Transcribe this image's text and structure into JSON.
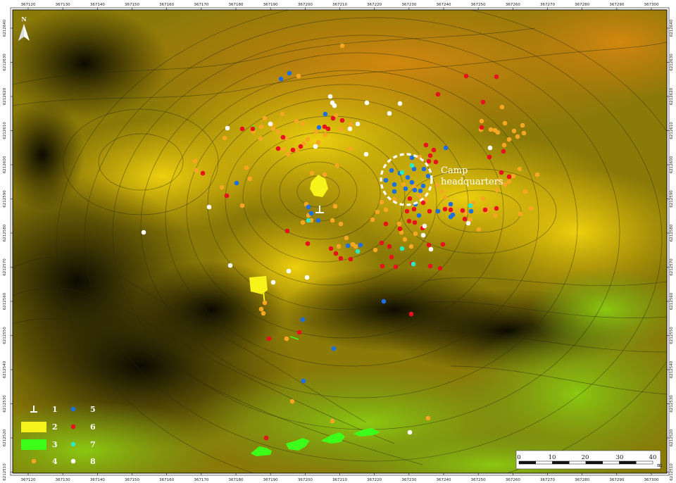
{
  "north_label": "N",
  "camp_label": {
    "line1": "Camp",
    "line2": "headquarters"
  },
  "x_ticks": [
    "367120",
    "367130",
    "367140",
    "367150",
    "367160",
    "367170",
    "367180",
    "367190",
    "367200",
    "367210",
    "367220",
    "367230",
    "367240",
    "367250",
    "367260",
    "367270",
    "367280",
    "367290",
    "367300"
  ],
  "y_ticks": [
    "6212640",
    "6212630",
    "6212620",
    "6212610",
    "6212600",
    "6212590",
    "6212580",
    "6212570",
    "6212560",
    "6212550",
    "6212540",
    "6212530",
    "6212520",
    "6212510"
  ],
  "legend": [
    {
      "num": "1",
      "symbol": "post"
    },
    {
      "num": "2",
      "symbol": "yellow-area"
    },
    {
      "num": "3",
      "symbol": "green-area"
    },
    {
      "num": "4",
      "symbol": "dot",
      "color": "#f5a623"
    },
    {
      "num": "5",
      "symbol": "dot",
      "color": "#1e6fe0"
    },
    {
      "num": "6",
      "symbol": "dot",
      "color": "#e8121e"
    },
    {
      "num": "7",
      "symbol": "dot",
      "color": "#2ee8c0"
    },
    {
      "num": "8",
      "symbol": "dot",
      "color": "#ffffff"
    }
  ],
  "scale_bar": {
    "labels": [
      "0",
      "10",
      "20",
      "30",
      "40"
    ],
    "unit": "m"
  },
  "colors": {
    "orange": "#f5a623",
    "blue": "#1e6fe0",
    "red": "#e8121e",
    "cyan": "#2ee8c0",
    "white": "#ffffff",
    "yellow": "#f7f21a",
    "green": "#3dff1a"
  },
  "points": {
    "orange": [
      [
        486,
        65
      ],
      [
        424,
        108
      ],
      [
        401,
        162
      ],
      [
        376,
        168
      ],
      [
        371,
        180
      ],
      [
        387,
        177
      ],
      [
        395,
        187
      ],
      [
        407,
        196
      ],
      [
        421,
        172
      ],
      [
        430,
        176
      ],
      [
        437,
        198
      ],
      [
        431,
        204
      ],
      [
        422,
        213
      ],
      [
        402,
        212
      ],
      [
        409,
        219
      ],
      [
        388,
        183
      ],
      [
        360,
        187
      ],
      [
        370,
        197
      ],
      [
        319,
        196
      ],
      [
        277,
        229
      ],
      [
        279,
        242
      ],
      [
        315,
        266
      ],
      [
        350,
        238
      ],
      [
        355,
        254
      ],
      [
        449,
        187
      ],
      [
        462,
        191
      ],
      [
        452,
        202
      ],
      [
        443,
        246
      ],
      [
        461,
        248
      ],
      [
        479,
        235
      ],
      [
        497,
        211
      ],
      [
        484,
        183
      ],
      [
        477,
        164
      ],
      [
        498,
        177
      ],
      [
        344,
        292
      ],
      [
        435,
        290
      ],
      [
        438,
        306
      ],
      [
        442,
        313
      ],
      [
        430,
        316
      ],
      [
        476,
        293
      ],
      [
        472,
        313
      ],
      [
        484,
        318
      ],
      [
        492,
        338
      ],
      [
        501,
        347
      ],
      [
        529,
        312
      ],
      [
        536,
        301
      ],
      [
        542,
        287
      ],
      [
        548,
        298
      ],
      [
        560,
        283
      ],
      [
        573,
        262
      ],
      [
        588,
        265
      ],
      [
        596,
        278
      ],
      [
        605,
        284
      ],
      [
        567,
        318
      ],
      [
        570,
        330
      ],
      [
        575,
        340
      ],
      [
        584,
        350
      ],
      [
        590,
        332
      ],
      [
        599,
        323
      ],
      [
        621,
        263
      ],
      [
        628,
        272
      ],
      [
        632,
        280
      ],
      [
        637,
        294
      ],
      [
        644,
        302
      ],
      [
        652,
        298
      ],
      [
        661,
        303
      ],
      [
        668,
        312
      ],
      [
        680,
        326
      ],
      [
        690,
        300
      ],
      [
        703,
        306
      ],
      [
        672,
        288
      ],
      [
        686,
        282
      ],
      [
        694,
        296
      ],
      [
        709,
        256
      ],
      [
        706,
        270
      ],
      [
        723,
        258
      ],
      [
        729,
        250
      ],
      [
        746,
        272
      ],
      [
        738,
        240
      ],
      [
        763,
        248
      ],
      [
        739,
        304
      ],
      [
        754,
        296
      ],
      [
        717,
        262
      ],
      [
        723,
        198
      ],
      [
        716,
        206
      ],
      [
        707,
        188
      ],
      [
        717,
        175
      ],
      [
        713,
        152
      ],
      [
        742,
        178
      ],
      [
        744,
        189
      ],
      [
        730,
        186
      ],
      [
        735,
        194
      ],
      [
        703,
        185
      ],
      [
        684,
        172
      ],
      [
        683,
        184
      ],
      [
        697,
        184
      ],
      [
        371,
        439
      ],
      [
        376,
        430
      ],
      [
        374,
        445
      ],
      [
        407,
        481
      ],
      [
        415,
        570
      ],
      [
        472,
        598
      ],
      [
        608,
        594
      ],
      [
        481,
        350
      ],
      [
        505,
        350
      ],
      [
        533,
        355
      ],
      [
        596,
        223
      ]
    ],
    "blue": [
      [
        411,
        104
      ],
      [
        399,
        112
      ],
      [
        462,
        162
      ],
      [
        453,
        181
      ],
      [
        336,
        260
      ],
      [
        438,
        294
      ],
      [
        442,
        303
      ],
      [
        452,
        313
      ],
      [
        494,
        349
      ],
      [
        512,
        348
      ],
      [
        556,
        242
      ],
      [
        568,
        246
      ],
      [
        579,
        252
      ],
      [
        585,
        259
      ],
      [
        560,
        262
      ],
      [
        548,
        256
      ],
      [
        601,
        264
      ],
      [
        597,
        271
      ],
      [
        576,
        268
      ],
      [
        608,
        250
      ],
      [
        602,
        240
      ],
      [
        633,
        210
      ],
      [
        588,
        240
      ],
      [
        585,
        224
      ],
      [
        595,
        306
      ],
      [
        622,
        300
      ],
      [
        640,
        290
      ],
      [
        643,
        305
      ],
      [
        669,
        300
      ],
      [
        640,
        308
      ],
      [
        545,
        428
      ],
      [
        430,
        454
      ],
      [
        474,
        495
      ],
      [
        431,
        541
      ],
      [
        590,
        290
      ],
      [
        560,
        272
      ],
      [
        589,
        270
      ]
    ],
    "red": [
      [
        344,
        183
      ],
      [
        359,
        183
      ],
      [
        402,
        195
      ],
      [
        395,
        211
      ],
      [
        416,
        213
      ],
      [
        427,
        208
      ],
      [
        466,
        183
      ],
      [
        473,
        168
      ],
      [
        486,
        171
      ],
      [
        461,
        180
      ],
      [
        622,
        134
      ],
      [
        662,
        108
      ],
      [
        705,
        109
      ],
      [
        686,
        145
      ],
      [
        684,
        181
      ],
      [
        715,
        215
      ],
      [
        695,
        223
      ],
      [
        723,
        251
      ],
      [
        712,
        245
      ],
      [
        619,
        230
      ],
      [
        609,
        229
      ],
      [
        611,
        221
      ],
      [
        605,
        206
      ],
      [
        616,
        213
      ],
      [
        288,
        246
      ],
      [
        322,
        278
      ],
      [
        408,
        328
      ],
      [
        470,
        353
      ],
      [
        477,
        360
      ],
      [
        484,
        367
      ],
      [
        498,
        368
      ],
      [
        542,
        345
      ],
      [
        553,
        350
      ],
      [
        556,
        365
      ],
      [
        543,
        378
      ],
      [
        562,
        379
      ],
      [
        600,
        324
      ],
      [
        609,
        348
      ],
      [
        585,
        374
      ],
      [
        611,
        378
      ],
      [
        625,
        381
      ],
      [
        629,
        347
      ],
      [
        610,
        300
      ],
      [
        632,
        297
      ],
      [
        640,
        298
      ],
      [
        657,
        299
      ],
      [
        705,
        296
      ],
      [
        689,
        298
      ],
      [
        582,
        282
      ],
      [
        578,
        300
      ],
      [
        581,
        314
      ],
      [
        548,
        318
      ],
      [
        437,
        346
      ],
      [
        425,
        472
      ],
      [
        382,
        481
      ],
      [
        584,
        446
      ],
      [
        378,
        622
      ],
      [
        660,
        311
      ],
      [
        568,
        325
      ],
      [
        589,
        316
      ],
      [
        588,
        297
      ],
      [
        601,
        288
      ]
    ],
    "cyan": [
      [
        585,
        235
      ],
      [
        571,
        245
      ],
      [
        438,
        313
      ],
      [
        508,
        357
      ],
      [
        571,
        353
      ],
      [
        587,
        375
      ],
      [
        668,
        292
      ]
    ],
    "white": [
      [
        568,
        147
      ],
      [
        553,
        161
      ],
      [
        521,
        146
      ],
      [
        508,
        176
      ],
      [
        497,
        183
      ],
      [
        472,
        146
      ],
      [
        469,
        137
      ],
      [
        475,
        150
      ],
      [
        323,
        182
      ],
      [
        297,
        294
      ],
      [
        204,
        330
      ],
      [
        327,
        377
      ],
      [
        410,
        385
      ],
      [
        388,
        401
      ],
      [
        436,
        394
      ],
      [
        520,
        219
      ],
      [
        448,
        208
      ],
      [
        603,
        321
      ],
      [
        601,
        334
      ],
      [
        612,
        354
      ],
      [
        665,
        317
      ],
      [
        696,
        210
      ],
      [
        582,
        614
      ],
      [
        384,
        176
      ]
    ]
  }
}
